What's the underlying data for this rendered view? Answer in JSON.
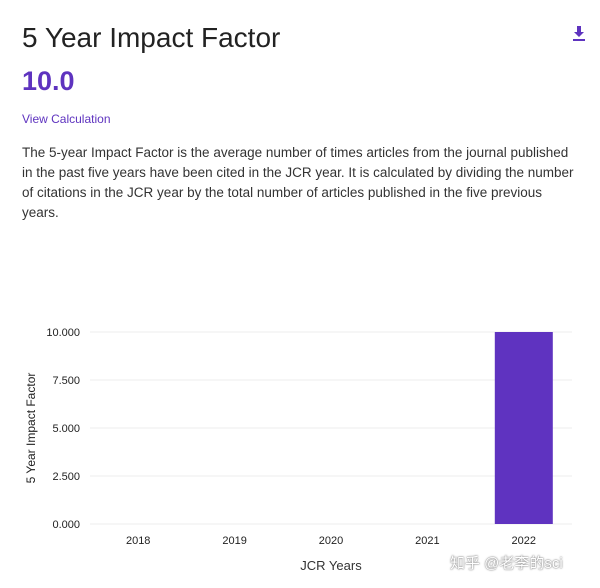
{
  "header": {
    "title": "5 Year Impact Factor",
    "value": "10.0",
    "view_calculation": "View Calculation",
    "download_icon": "download-icon"
  },
  "description": "The 5-year Impact Factor is the average number of times articles from the journal published in the past five years have been cited in the JCR year. It is calculated by dividing the number of citations in the JCR year by the total number of articles published in the five previous years.",
  "watermark": "知乎 @老李的sci",
  "colors": {
    "accent": "#5e33bf",
    "bar": "#5f33c0",
    "grid": "#eeeeee"
  },
  "chart_data": {
    "type": "bar",
    "categories": [
      "2018",
      "2019",
      "2020",
      "2021",
      "2022"
    ],
    "values": [
      0,
      0,
      0,
      0,
      10.0
    ],
    "xlabel": "JCR Years",
    "ylabel": "5 Year Impact Factor",
    "ylim": [
      0,
      10
    ],
    "yticks": [
      "0.000",
      "2.500",
      "5.000",
      "7.500",
      "10.000"
    ],
    "grid": true,
    "legend": "none"
  }
}
